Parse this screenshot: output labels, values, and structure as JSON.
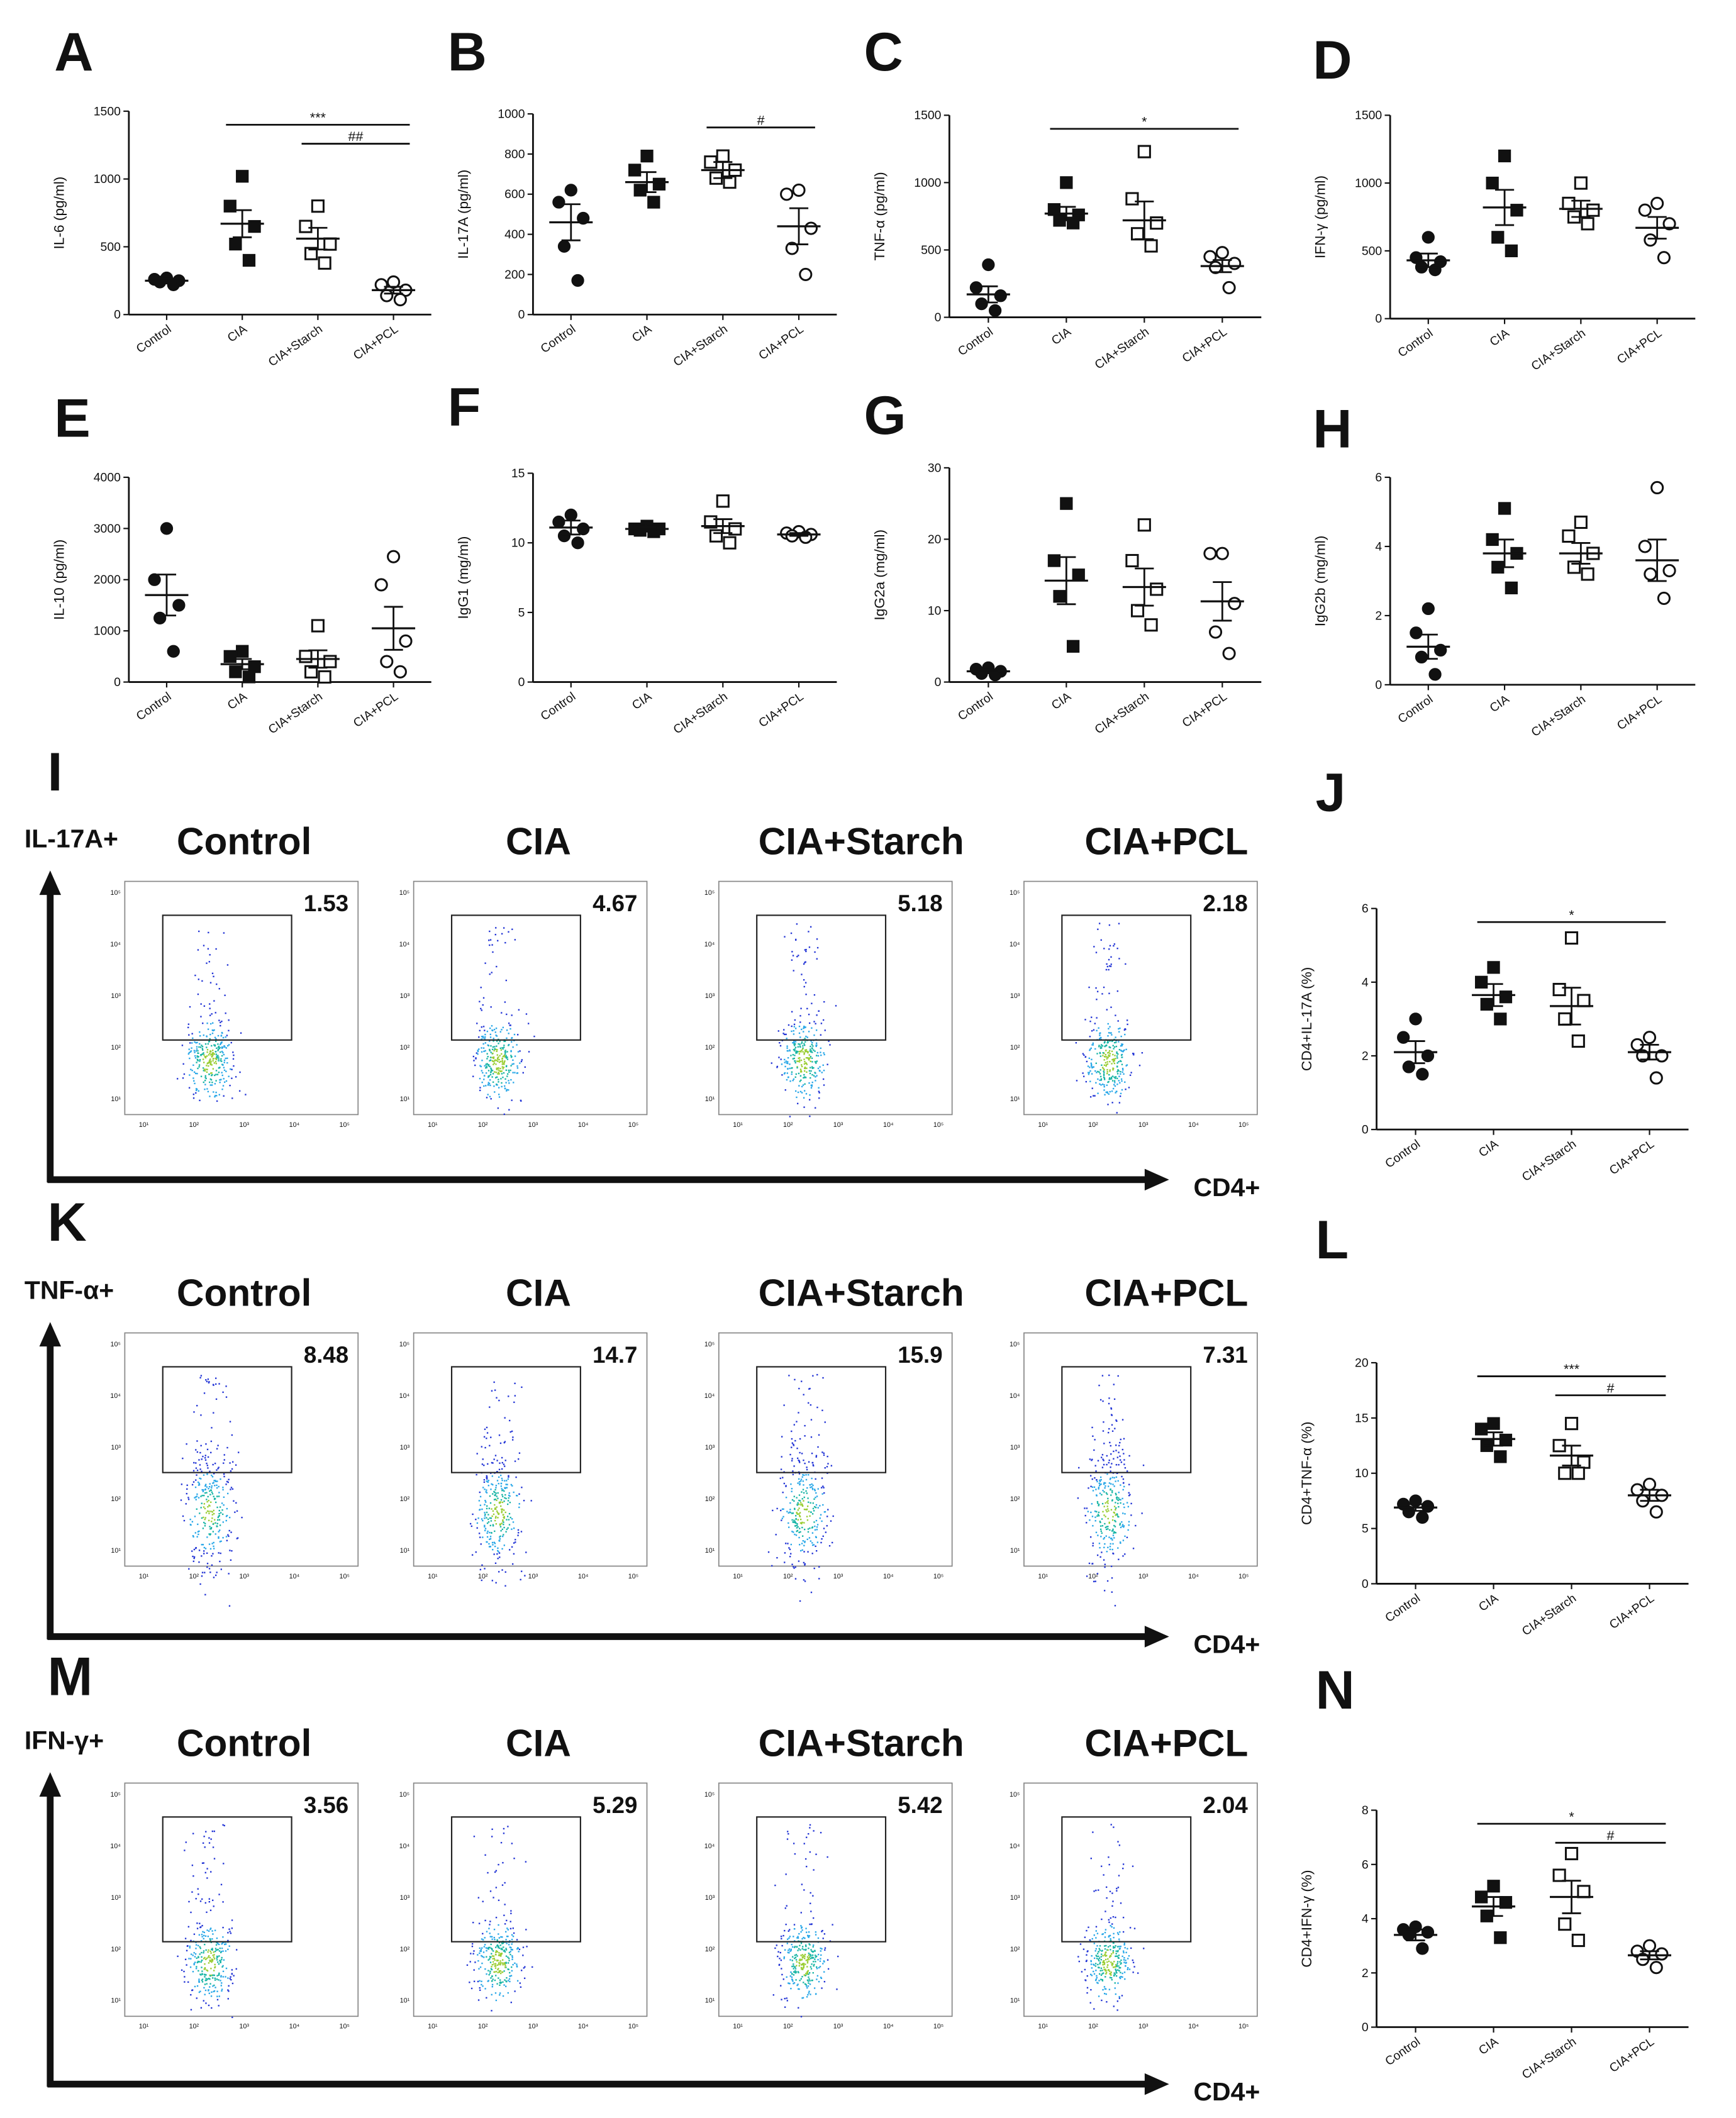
{
  "group_markers": [
    "circle",
    "square",
    "square-open",
    "circle-open"
  ],
  "chart_data": [
    {
      "type": "dot",
      "panel": "A",
      "ylabel": "IL-6 (pg/ml)",
      "categories": [
        "Control",
        "CIA",
        "CIA+Starch",
        "CIA+PCL"
      ],
      "ylim": [
        0,
        1500
      ],
      "yticks": [
        0,
        500,
        1000,
        1500
      ],
      "points": [
        [
          270,
          260,
          250,
          240,
          220
        ],
        [
          1020,
          800,
          650,
          520,
          400
        ],
        [
          800,
          650,
          520,
          450,
          380
        ],
        [
          240,
          220,
          180,
          140,
          110
        ]
      ],
      "means": [
        250,
        670,
        560,
        180
      ],
      "errors": [
        15,
        100,
        80,
        25
      ],
      "annotations": [
        {
          "label": "***",
          "from": 1,
          "to": 3
        },
        {
          "label": "##",
          "from": 2,
          "to": 3
        }
      ]
    },
    {
      "type": "dot",
      "panel": "B",
      "ylabel": "IL-17A (pg/ml)",
      "categories": [
        "Control",
        "CIA",
        "CIA+Starch",
        "CIA+PCL"
      ],
      "ylim": [
        0,
        1000
      ],
      "yticks": [
        0,
        200,
        400,
        600,
        800,
        1000
      ],
      "points": [
        [
          620,
          560,
          480,
          340,
          170
        ],
        [
          790,
          720,
          650,
          620,
          560
        ],
        [
          790,
          760,
          720,
          680,
          660
        ],
        [
          620,
          600,
          430,
          330,
          200
        ]
      ],
      "means": [
        460,
        660,
        720,
        440
      ],
      "errors": [
        90,
        50,
        40,
        90
      ],
      "annotations": [
        {
          "label": "#",
          "from": 2,
          "to": 3
        }
      ]
    },
    {
      "type": "dot",
      "panel": "C",
      "ylabel": "TNF-α (pg/ml)",
      "categories": [
        "Control",
        "CIA",
        "CIA+Starch",
        "CIA+PCL"
      ],
      "ylim": [
        0,
        1500
      ],
      "yticks": [
        0,
        500,
        1000,
        1500
      ],
      "points": [
        [
          390,
          220,
          160,
          100,
          50
        ],
        [
          1000,
          800,
          760,
          720,
          700
        ],
        [
          1230,
          880,
          700,
          620,
          530
        ],
        [
          480,
          450,
          400,
          370,
          220
        ]
      ],
      "means": [
        170,
        770,
        720,
        380
      ],
      "errors": [
        60,
        50,
        140,
        45
      ],
      "annotations": [
        {
          "label": "*",
          "from": 1,
          "to": 3
        }
      ]
    },
    {
      "type": "dot",
      "panel": "D",
      "ylabel": "IFN-γ (pg/ml)",
      "categories": [
        "Control",
        "CIA",
        "CIA+Starch",
        "CIA+PCL"
      ],
      "ylim": [
        0,
        1500
      ],
      "yticks": [
        0,
        500,
        1000,
        1500
      ],
      "points": [
        [
          600,
          450,
          420,
          380,
          360
        ],
        [
          1200,
          1000,
          800,
          600,
          500
        ],
        [
          1000,
          850,
          800,
          750,
          700
        ],
        [
          850,
          800,
          700,
          580,
          450
        ]
      ],
      "means": [
        430,
        820,
        810,
        670
      ],
      "errors": [
        50,
        130,
        60,
        80
      ],
      "annotations": []
    },
    {
      "type": "dot",
      "panel": "E",
      "ylabel": "IL-10 (pg/ml)",
      "categories": [
        "Control",
        "CIA",
        "CIA+Starch",
        "CIA+PCL"
      ],
      "ylim": [
        0,
        4000
      ],
      "yticks": [
        0,
        1000,
        2000,
        3000,
        4000
      ],
      "points": [
        [
          3000,
          2000,
          1500,
          1250,
          600
        ],
        [
          600,
          500,
          300,
          200,
          100
        ],
        [
          1100,
          500,
          400,
          200,
          100
        ],
        [
          2450,
          1900,
          800,
          400,
          200
        ]
      ],
      "means": [
        1700,
        350,
        450,
        1050
      ],
      "errors": [
        400,
        100,
        170,
        420
      ],
      "annotations": []
    },
    {
      "type": "dot",
      "panel": "F",
      "ylabel": "IgG1 (mg/ml)",
      "categories": [
        "Control",
        "CIA",
        "CIA+Starch",
        "CIA+PCL"
      ],
      "ylim": [
        0,
        15
      ],
      "yticks": [
        0,
        5,
        10,
        15
      ],
      "points": [
        [
          12,
          11.5,
          11,
          10.5,
          10
        ],
        [
          11.2,
          11,
          11,
          10.9,
          10.8
        ],
        [
          13,
          11.5,
          11,
          10.5,
          10
        ],
        [
          10.8,
          10.7,
          10.6,
          10.5,
          10.4
        ]
      ],
      "means": [
        11.1,
        11,
        11.2,
        10.6
      ],
      "errors": [
        0.5,
        0.1,
        0.5,
        0.1
      ],
      "annotations": []
    },
    {
      "type": "dot",
      "panel": "G",
      "ylabel": "IgG2a (mg/ml)",
      "categories": [
        "Control",
        "CIA",
        "CIA+Starch",
        "CIA+PCL"
      ],
      "ylim": [
        0,
        30
      ],
      "yticks": [
        0,
        10,
        20,
        30
      ],
      "points": [
        [
          2,
          1.8,
          1.5,
          1.2,
          1
        ],
        [
          25,
          17,
          15,
          12,
          5
        ],
        [
          22,
          17,
          13,
          10,
          8
        ],
        [
          18,
          18,
          11,
          7,
          4
        ]
      ],
      "means": [
        1.5,
        14.2,
        13.3,
        11.3
      ],
      "errors": [
        0.2,
        3.3,
        2.6,
        2.7
      ],
      "annotations": []
    },
    {
      "type": "dot",
      "panel": "H",
      "ylabel": "IgG2b (mg/ml)",
      "categories": [
        "Control",
        "CIA",
        "CIA+Starch",
        "CIA+PCL"
      ],
      "ylim": [
        0,
        6
      ],
      "yticks": [
        0,
        2,
        4,
        6
      ],
      "points": [
        [
          2.2,
          1.5,
          1,
          0.8,
          0.3
        ],
        [
          5.1,
          4.2,
          3.8,
          3.4,
          2.8
        ],
        [
          4.7,
          4.3,
          3.8,
          3.4,
          3.2
        ],
        [
          5.7,
          4,
          3.3,
          3.2,
          2.5
        ]
      ],
      "means": [
        1.1,
        3.8,
        3.8,
        3.6
      ],
      "errors": [
        0.35,
        0.4,
        0.3,
        0.6
      ],
      "annotations": []
    },
    {
      "type": "dot",
      "panel": "J",
      "ylabel": "CD4+IL-17A (%)",
      "categories": [
        "Control",
        "CIA",
        "CIA+Starch",
        "CIA+PCL"
      ],
      "ylim": [
        0,
        6
      ],
      "yticks": [
        0,
        2,
        4,
        6
      ],
      "points": [
        [
          3,
          2.5,
          2,
          1.7,
          1.5
        ],
        [
          4.4,
          4,
          3.6,
          3.4,
          3
        ],
        [
          5.2,
          3.8,
          3.5,
          3,
          2.4
        ],
        [
          2.5,
          2.3,
          2,
          2,
          1.4
        ]
      ],
      "means": [
        2.1,
        3.65,
        3.35,
        2.1
      ],
      "errors": [
        0.3,
        0.3,
        0.5,
        0.2
      ],
      "annotations": [
        {
          "label": "*",
          "from": 1,
          "to": 3
        }
      ]
    },
    {
      "type": "dot",
      "panel": "L",
      "ylabel": "CD4+TNF-α (%)",
      "categories": [
        "Control",
        "CIA",
        "CIA+Starch",
        "CIA+PCL"
      ],
      "ylim": [
        0,
        20
      ],
      "yticks": [
        0,
        5,
        10,
        15,
        20
      ],
      "points": [
        [
          7.5,
          7.2,
          7,
          6.5,
          6
        ],
        [
          14.5,
          14,
          13,
          12.5,
          11.5
        ],
        [
          14.5,
          12.5,
          11,
          10,
          10
        ],
        [
          9,
          8.5,
          8,
          7.5,
          6.5
        ]
      ],
      "means": [
        6.9,
        13.1,
        11.6,
        8
      ],
      "errors": [
        0.3,
        0.6,
        0.9,
        0.5
      ],
      "annotations": [
        {
          "label": "***",
          "from": 1,
          "to": 3
        },
        {
          "label": "#",
          "from": 2,
          "to": 3
        }
      ]
    },
    {
      "type": "dot",
      "panel": "N",
      "ylabel": "CD4+IFN-γ (%)",
      "categories": [
        "Control",
        "CIA",
        "CIA+Starch",
        "CIA+PCL"
      ],
      "ylim": [
        0,
        8
      ],
      "yticks": [
        0,
        2,
        4,
        6,
        8
      ],
      "points": [
        [
          3.7,
          3.6,
          3.5,
          3.4,
          2.9
        ],
        [
          5.2,
          4.8,
          4.6,
          4.1,
          3.3
        ],
        [
          6.4,
          5.6,
          5,
          3.8,
          3.2
        ],
        [
          3,
          2.8,
          2.7,
          2.5,
          2.2
        ]
      ],
      "means": [
        3.4,
        4.45,
        4.8,
        2.65
      ],
      "errors": [
        0.2,
        0.35,
        0.6,
        0.15
      ],
      "annotations": [
        {
          "label": "*",
          "from": 1,
          "to": 3
        },
        {
          "label": "#",
          "from": 2,
          "to": 3
        }
      ]
    }
  ],
  "flow_groups": [
    "Control",
    "CIA",
    "CIA+Starch",
    "CIA+PCL"
  ],
  "flow_xlabel": "CD4+",
  "flow_ticks": [
    "10¹",
    "10²",
    "10³",
    "10⁴",
    "10⁵"
  ],
  "flow_panels": [
    {
      "panel": "I",
      "marker": "IL-17A+",
      "percentages": [
        1.53,
        4.67,
        5.18,
        2.18
      ]
    },
    {
      "panel": "K",
      "marker": "TNF-α+",
      "percentages": [
        8.48,
        14.7,
        15.9,
        7.31
      ]
    },
    {
      "panel": "M",
      "marker": "IFN-γ+",
      "percentages": [
        3.56,
        5.29,
        5.42,
        2.04
      ]
    }
  ]
}
